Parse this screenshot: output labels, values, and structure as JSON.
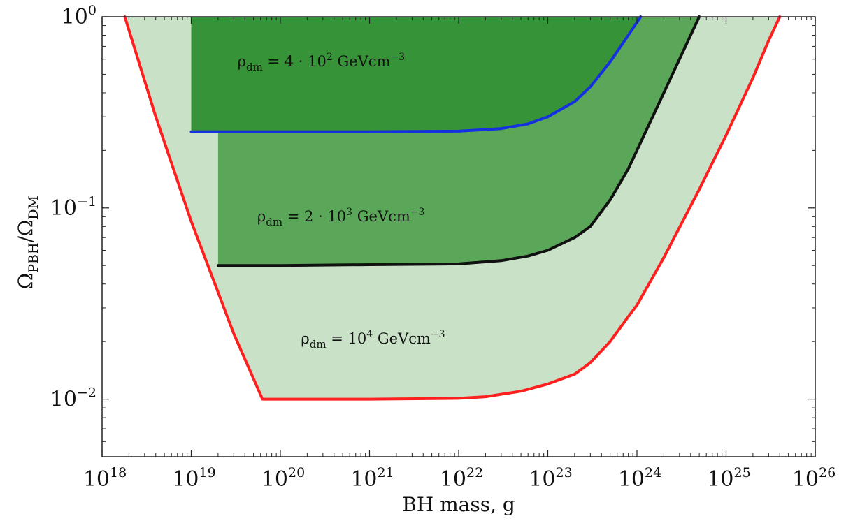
{
  "chart_data": {
    "type": "area",
    "xlabel": "BH mass, g",
    "ylabel": {
      "symbol": "Ω",
      "sub1": "PBH",
      "slash": "/",
      "sub2": "DM"
    },
    "xscale": "log",
    "yscale": "log",
    "xlim": [
      1e+18,
      1e+26
    ],
    "ylim": [
      0.005,
      1
    ],
    "x_ticks": [
      {
        "base": "10",
        "exp": "18",
        "value": 1e+18
      },
      {
        "base": "10",
        "exp": "19",
        "value": 1e+19
      },
      {
        "base": "10",
        "exp": "20",
        "value": 1e+20
      },
      {
        "base": "10",
        "exp": "21",
        "value": 1e+21
      },
      {
        "base": "10",
        "exp": "22",
        "value": 1e+22
      },
      {
        "base": "10",
        "exp": "23",
        "value": 1e+23
      },
      {
        "base": "10",
        "exp": "24",
        "value": 1e+24
      },
      {
        "base": "10",
        "exp": "25",
        "value": 1e+25
      },
      {
        "base": "10",
        "exp": "26",
        "value": 1e+26
      }
    ],
    "y_ticks": [
      {
        "base": "10",
        "exp": "0",
        "value": 1
      },
      {
        "base": "10",
        "exp": "−1",
        "value": 0.1
      },
      {
        "base": "10",
        "exp": "−2",
        "value": 0.01
      }
    ],
    "grid": false,
    "series": [
      {
        "color": "#ff1f1f",
        "fill": "#c9e2c7",
        "annotation": {
          "pre": "ρ",
          "sub": "dm",
          "mid": " = 10",
          "sup": "4",
          "post": " GeVcm",
          "sup2": "−3"
        },
        "x": [
          1.8e+18,
          4e+18,
          1e+19,
          3e+19,
          6.3e+19,
          1e+20,
          1e+21,
          1e+22,
          2e+22,
          5e+22,
          1e+23,
          2e+23,
          3e+23,
          5e+23,
          8e+23,
          1e+24,
          2e+24,
          5e+24,
          1e+25,
          2e+25,
          3e+25,
          4e+25
        ],
        "y": [
          1.0,
          0.3,
          0.085,
          0.022,
          0.01,
          0.01,
          0.01,
          0.0101,
          0.0103,
          0.011,
          0.012,
          0.0135,
          0.0155,
          0.02,
          0.027,
          0.031,
          0.055,
          0.125,
          0.24,
          0.48,
          0.75,
          1.0
        ]
      },
      {
        "color": "#111111",
        "fill": "#5aa75a",
        "annotation": {
          "pre": "ρ",
          "sub": "dm",
          "mid": " = 2 · 10",
          "sup": "3",
          "post": " GeVcm",
          "sup2": "−3"
        },
        "x": [
          2e+19,
          5e+19,
          1e+20,
          1e+21,
          1e+22,
          3e+22,
          6e+22,
          1e+23,
          2e+23,
          3e+23,
          5e+23,
          8e+23,
          1e+24,
          2e+24,
          4e+24,
          5e+24
        ],
        "y": [
          0.05,
          0.05,
          0.05,
          0.0505,
          0.051,
          0.053,
          0.056,
          0.06,
          0.07,
          0.08,
          0.11,
          0.16,
          0.2,
          0.4,
          0.8,
          1.0
        ]
      },
      {
        "color": "#1530e0",
        "fill": "#379337",
        "annotation": {
          "pre": "ρ",
          "sub": "dm",
          "mid": " = 4 · 10",
          "sup": "2",
          "post": " GeVcm",
          "sup2": "−3"
        },
        "x": [
          1e+19,
          3e+19,
          1e+20,
          1e+21,
          1e+22,
          3e+22,
          6e+22,
          1e+23,
          2e+23,
          3e+23,
          5e+23,
          8e+23,
          1.1e+24
        ],
        "y": [
          0.25,
          0.25,
          0.25,
          0.25,
          0.252,
          0.26,
          0.275,
          0.3,
          0.36,
          0.43,
          0.58,
          0.8,
          1.0
        ]
      }
    ]
  }
}
